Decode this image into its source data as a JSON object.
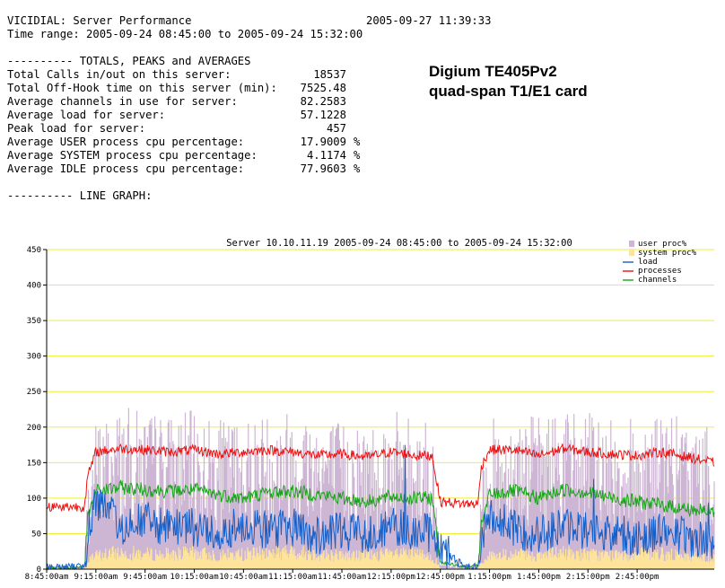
{
  "header": {
    "title": "VICIDIAL: Server Performance",
    "timestamp": "2005-09-27 11:39:33",
    "time_range": "Time range: 2005-09-24 08:45:00 to 2005-09-24 15:32:00"
  },
  "stats": {
    "section_title": "---------- TOTALS, PEAKS and AVERAGES",
    "rows": [
      {
        "label": "Total Calls in/out on this server:",
        "value": "18537",
        "unit": ""
      },
      {
        "label": "Total Off-Hook time on this server (min):",
        "value": "7525.48",
        "unit": ""
      },
      {
        "label": "Average channels in use for server:",
        "value": "82.2583",
        "unit": ""
      },
      {
        "label": "Average load for server:",
        "value": "57.1228",
        "unit": ""
      },
      {
        "label": "Peak load for server:",
        "value": "457",
        "unit": ""
      },
      {
        "label": "Average USER process cpu percentage:",
        "value": "17.9009",
        "unit": "%"
      },
      {
        "label": "Average SYSTEM process cpu percentage:",
        "value": "4.1174",
        "unit": "%"
      },
      {
        "label": "Average IDLE process cpu percentage:",
        "value": "77.9603",
        "unit": "%"
      }
    ],
    "graph_section_title": "---------- LINE GRAPH:"
  },
  "card_label": {
    "line1": "Digium TE405Pv2",
    "line2": "quad-span T1/E1 card"
  },
  "colors": {
    "user_proc": "#cdb6d3",
    "system_proc": "#fde49a",
    "load": "#1560c8",
    "processes": "#ee1111",
    "channels": "#16a516",
    "grid": "#efef33"
  },
  "chart_data": {
    "type": "line",
    "title": "Server 10.10.11.19   2005-09-24 08:45:00 to 2005-09-24 15:32:00",
    "xlabel": "",
    "ylabel": "",
    "ylim": [
      0,
      450
    ],
    "yticks": [
      0,
      50,
      100,
      150,
      200,
      250,
      300,
      350,
      400,
      450
    ],
    "grid": true,
    "legend_position": "top-right",
    "x_tick_labels": [
      "8:45:00am",
      "9:15:00am",
      "9:45:00am",
      "10:15:00am",
      "10:45:00am",
      "11:15:00am",
      "11:45:00am",
      "12:15:00pm",
      "12:45:00pm",
      "1:15:00pm",
      "1:45:00pm",
      "2:15:00pm",
      "2:45:00pm"
    ],
    "legend": [
      "user proc%",
      "system proc%",
      "load",
      "processes",
      "channels"
    ],
    "x": [
      "8:45",
      "9:00",
      "9:08",
      "9:10",
      "9:15",
      "9:30",
      "9:45",
      "10:00",
      "10:15",
      "10:30",
      "10:45",
      "11:00",
      "11:15",
      "11:30",
      "11:45",
      "12:00",
      "12:15",
      "12:30",
      "12:40",
      "12:45",
      "13:00",
      "13:08",
      "13:10",
      "13:15",
      "13:30",
      "13:45",
      "14:00",
      "14:15",
      "14:30",
      "14:45",
      "15:00",
      "15:15",
      "15:32"
    ],
    "series": [
      {
        "name": "user proc%",
        "values": [
          3,
          3,
          4,
          90,
          150,
          165,
          160,
          158,
          160,
          150,
          155,
          160,
          165,
          160,
          150,
          150,
          160,
          155,
          150,
          5,
          3,
          5,
          90,
          150,
          160,
          155,
          165,
          160,
          150,
          155,
          160,
          150,
          140
        ]
      },
      {
        "name": "system proc%",
        "values": [
          1,
          1,
          1,
          10,
          20,
          25,
          22,
          22,
          24,
          20,
          22,
          24,
          25,
          22,
          20,
          20,
          22,
          22,
          20,
          1,
          1,
          1,
          10,
          20,
          22,
          20,
          24,
          22,
          20,
          22,
          22,
          20,
          18
        ]
      },
      {
        "name": "load",
        "values": [
          3,
          3,
          5,
          50,
          100,
          60,
          70,
          55,
          60,
          50,
          65,
          55,
          60,
          45,
          55,
          50,
          60,
          55,
          50,
          30,
          3,
          5,
          40,
          80,
          55,
          50,
          60,
          55,
          50,
          45,
          55,
          45,
          40
        ]
      },
      {
        "name": "processes",
        "values": [
          88,
          88,
          88,
          130,
          165,
          170,
          168,
          165,
          168,
          162,
          165,
          168,
          165,
          160,
          162,
          158,
          165,
          160,
          160,
          95,
          92,
          92,
          145,
          168,
          168,
          160,
          170,
          165,
          162,
          160,
          165,
          158,
          150
        ]
      },
      {
        "name": "channels",
        "values": [
          2,
          2,
          4,
          70,
          110,
          115,
          112,
          110,
          112,
          105,
          100,
          108,
          110,
          105,
          100,
          95,
          102,
          100,
          100,
          10,
          3,
          5,
          60,
          105,
          110,
          100,
          112,
          108,
          100,
          95,
          90,
          85,
          80
        ]
      }
    ]
  }
}
